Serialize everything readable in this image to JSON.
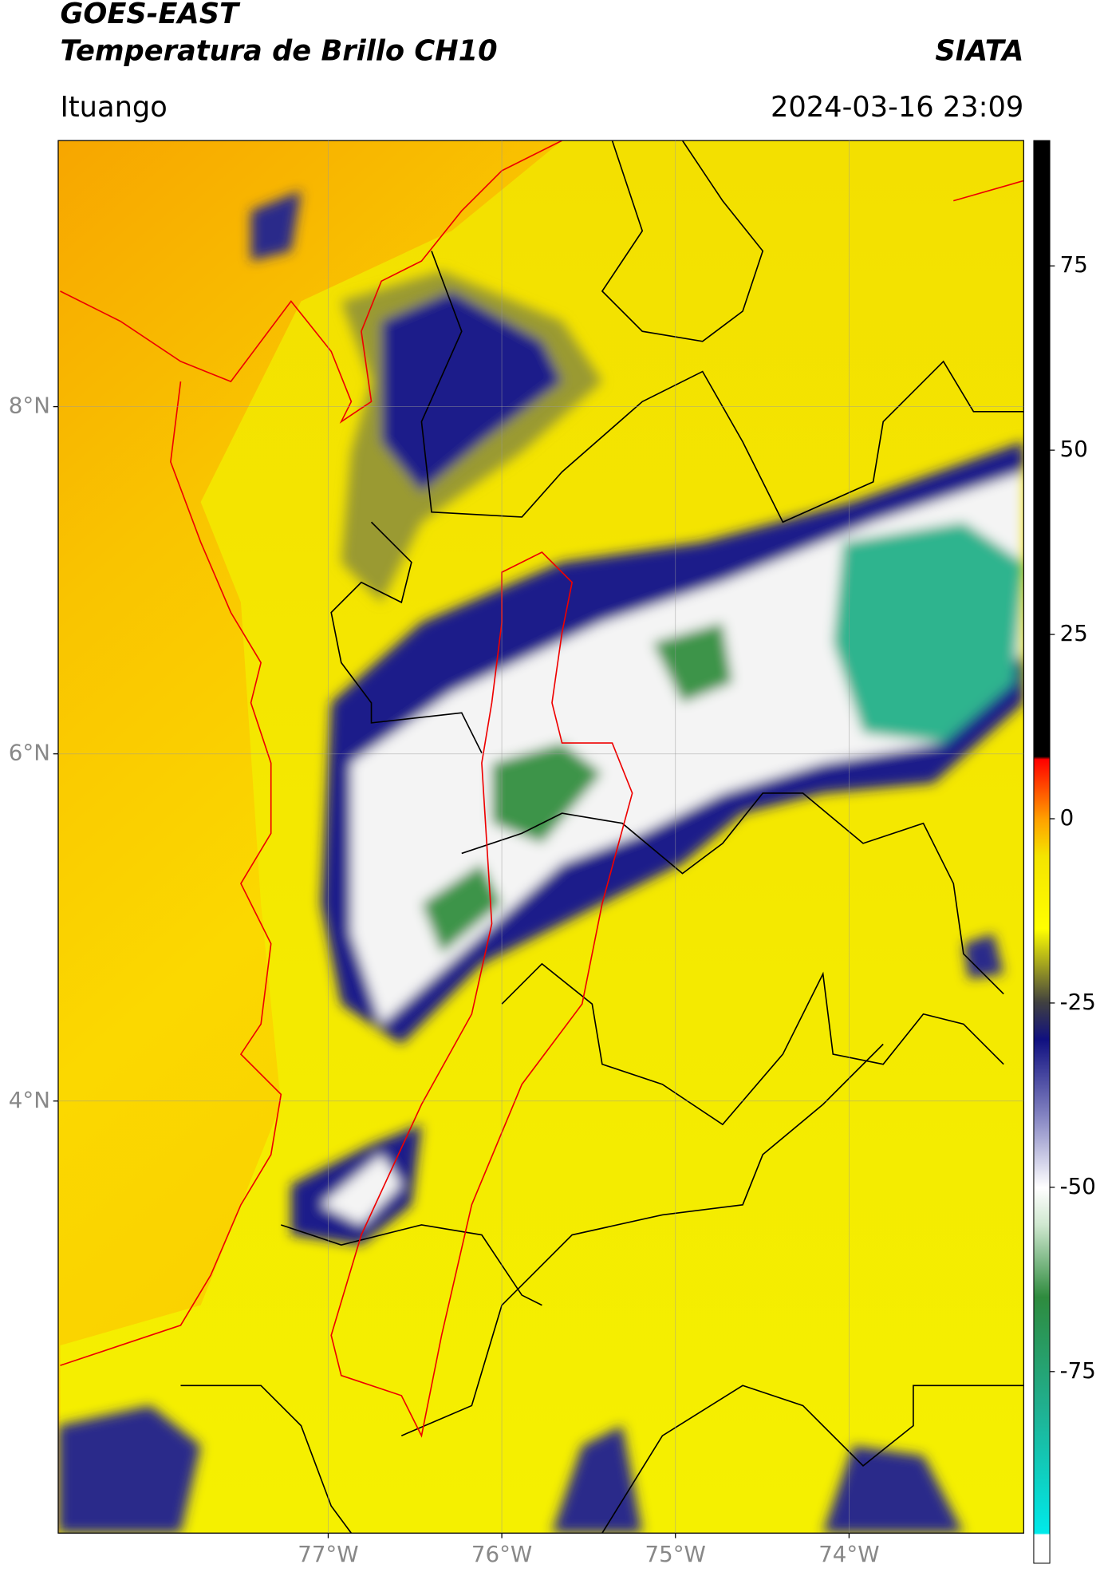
{
  "chart_data": {
    "type": "map",
    "title": "GOES-EAST",
    "subtitle": "Temperatura de Brillo CH10",
    "source": "SIATA",
    "region": "Ituango",
    "timestamp": "2024-03-16 23:09",
    "xlim": [
      -78.555,
      -72.994
    ],
    "ylim": [
      1.511,
      9.533
    ],
    "xticks": [
      {
        "value": -77,
        "label": "77°W"
      },
      {
        "value": -76,
        "label": "76°W"
      },
      {
        "value": -75,
        "label": "75°W"
      },
      {
        "value": -74,
        "label": "74°W"
      }
    ],
    "yticks": [
      {
        "value": 8,
        "label": "8°N"
      },
      {
        "value": 6,
        "label": "6°N"
      },
      {
        "value": 4,
        "label": "4°N"
      }
    ],
    "grid": true,
    "colorbar": {
      "lim": [
        -101,
        92
      ],
      "ticks": [
        75,
        50,
        25,
        0,
        -25,
        -50,
        -75
      ]
    }
  }
}
